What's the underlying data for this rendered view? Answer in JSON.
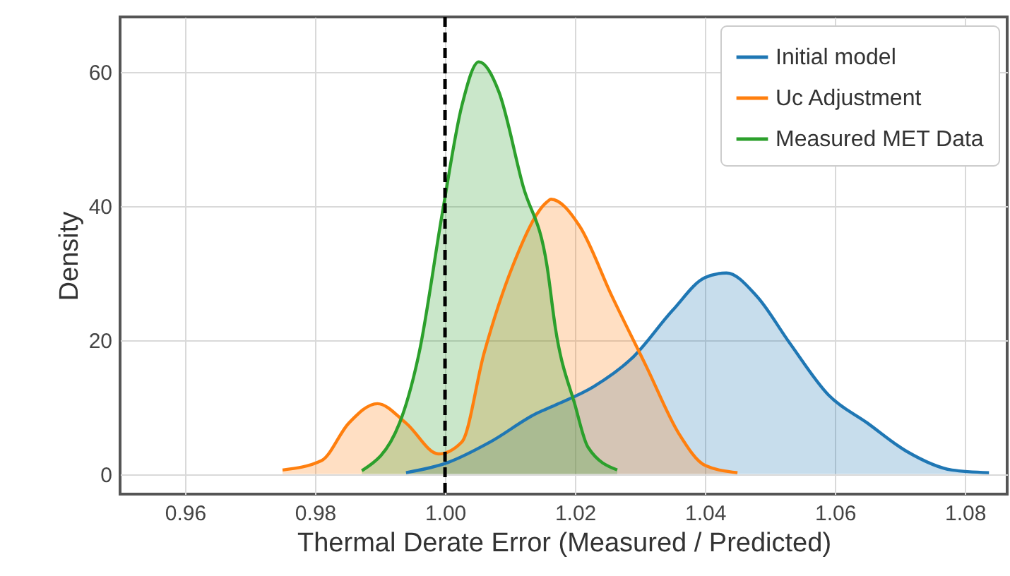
{
  "chart_data": {
    "type": "area",
    "xlabel": "Thermal Derate Error (Measured / Predicted)",
    "ylabel": "Density",
    "xlim": [
      0.95,
      1.0865
    ],
    "ylim": [
      -3,
      68.2
    ],
    "xticks": [
      {
        "value": 0.96,
        "label": "0.96"
      },
      {
        "value": 0.98,
        "label": "0.98"
      },
      {
        "value": 1.0,
        "label": "1.00"
      },
      {
        "value": 1.02,
        "label": "1.02"
      },
      {
        "value": 1.04,
        "label": "1.04"
      },
      {
        "value": 1.06,
        "label": "1.06"
      },
      {
        "value": 1.08,
        "label": "1.08"
      }
    ],
    "yticks": [
      0,
      20,
      40,
      60
    ],
    "grid": true,
    "legend": "top right",
    "series": [
      {
        "name": "Initial model",
        "color": "#1f77b4",
        "x": [
          0.994,
          1.0004,
          1.007,
          1.014,
          1.017,
          1.0228,
          1.029,
          1.035,
          1.04,
          1.0433,
          1.048,
          1.053,
          1.059,
          1.065,
          1.071,
          1.078,
          1.0837
        ],
        "values": [
          0.2,
          1.7,
          4.8,
          9,
          10.3,
          13,
          17.5,
          24.4,
          29.3,
          30,
          26.5,
          19.6,
          11.8,
          7.6,
          3.4,
          0.6,
          0.2
        ]
      },
      {
        "name": "Uc Adjustment",
        "color": "#ff7f0e",
        "x": [
          0.975,
          0.981,
          0.9852,
          0.9896,
          0.994,
          0.999,
          1.0026,
          1.006,
          1.0104,
          1.0157,
          1.0163,
          1.0207,
          1.0257,
          1.031,
          1.036,
          1.04,
          1.045
        ],
        "values": [
          0.6,
          2,
          7.6,
          10.5,
          7.6,
          3,
          4.8,
          18,
          31,
          40.6,
          41,
          37,
          26.5,
          16,
          6,
          1.3,
          0.2
        ]
      },
      {
        "name": "Measured MET Data",
        "color": "#2ca02c",
        "x": [
          0.9872,
          0.993,
          0.996,
          0.9996,
          1.0026,
          1.0052,
          1.0083,
          1.012,
          1.0157,
          1.017,
          1.02,
          1.022,
          1.0265
        ],
        "values": [
          0.5,
          7.6,
          18,
          39,
          55,
          61.5,
          57,
          43,
          31,
          21.7,
          10.3,
          4,
          0.6
        ]
      }
    ],
    "ref_lines": [
      {
        "axis": "x",
        "value": 1.0,
        "color": "#000000",
        "line_style": "dashed"
      }
    ]
  }
}
